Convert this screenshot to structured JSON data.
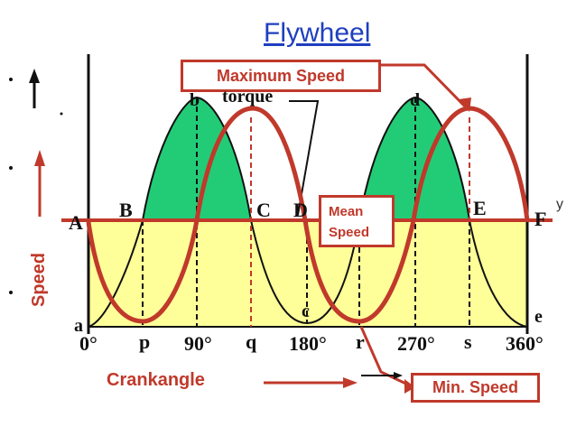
{
  "title": "Flywheel",
  "boxes": {
    "max_speed": "Maximum Speed",
    "mean_speed_line1": "Mean",
    "mean_speed_line2": "Speed",
    "min_speed": "Min. Speed"
  },
  "axis": {
    "x_label": "Crankangle",
    "y_label": "Speed",
    "y_mark": "y"
  },
  "curve_label": "torque",
  "points": {
    "A": "A",
    "B": "B",
    "C": "C",
    "D": "D",
    "E": "E",
    "F": "F",
    "a": "a",
    "b": "b",
    "c": "c",
    "d": "d",
    "e": "e"
  },
  "ticks": [
    "0°",
    "p",
    "90°",
    "q",
    "180°",
    "r",
    "270°",
    "s",
    "360°"
  ],
  "colors": {
    "speed_curve": "#c0392b",
    "positive_area": "#22cc77",
    "negative_area": "#ffff99",
    "title": "#1f3fbf"
  }
}
